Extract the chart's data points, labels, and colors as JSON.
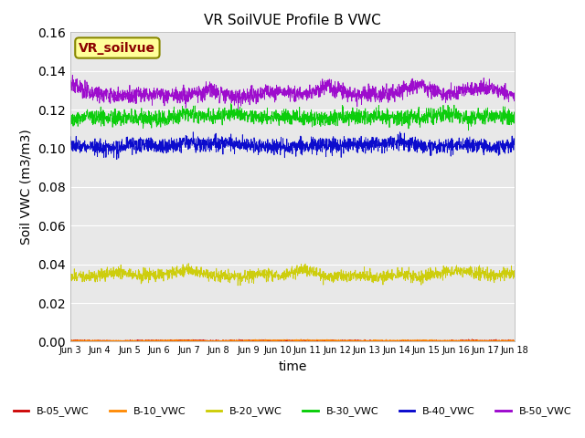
{
  "title": "VR SoilVUE Profile B VWC",
  "xlabel": "time",
  "ylabel": "Soil VWC (m3/m3)",
  "ylim": [
    0.0,
    0.16
  ],
  "yticks": [
    0.0,
    0.02,
    0.04,
    0.06,
    0.08,
    0.1,
    0.12,
    0.14,
    0.16
  ],
  "n_points": 2000,
  "series": [
    {
      "label": "B-05_VWC",
      "color": "#cc0000",
      "mean": 0.0005,
      "noise_std": 0.0002,
      "lf_std": 0.0001,
      "seed": 1
    },
    {
      "label": "B-10_VWC",
      "color": "#ff8800",
      "mean": 0.0005,
      "noise_std": 0.0002,
      "lf_std": 0.0001,
      "seed": 2
    },
    {
      "label": "B-20_VWC",
      "color": "#cccc00",
      "mean": 0.035,
      "noise_std": 0.0015,
      "lf_std": 0.001,
      "seed": 3
    },
    {
      "label": "B-30_VWC",
      "color": "#00cc00",
      "mean": 0.116,
      "noise_std": 0.002,
      "lf_std": 0.001,
      "seed": 4
    },
    {
      "label": "B-40_VWC",
      "color": "#0000cc",
      "mean": 0.101,
      "noise_std": 0.002,
      "lf_std": 0.001,
      "seed": 5
    },
    {
      "label": "B-50_VWC",
      "color": "#9900cc",
      "mean": 0.13,
      "noise_std": 0.002,
      "lf_std": 0.002,
      "seed": 6
    }
  ],
  "inset_label": "VR_soilvue",
  "inset_bg": "#ffff99",
  "inset_text_color": "#8b0000",
  "bg_color": "#e8e8e8",
  "xtick_start": 3,
  "xtick_end": 18
}
